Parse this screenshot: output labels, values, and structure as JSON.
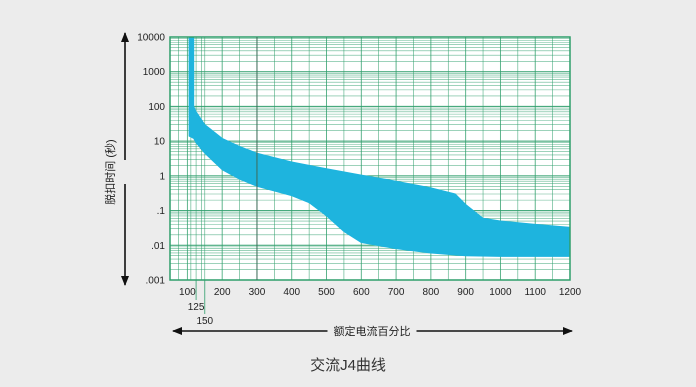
{
  "caption": "交流J4曲线",
  "chart_data": {
    "type": "area",
    "title": "",
    "xlabel": "额定电流百分比",
    "ylabel": "脱扣时间 (秒)",
    "x_scale": "linear",
    "y_scale": "log",
    "xlim": [
      50,
      1200
    ],
    "ylim": [
      0.001,
      10000
    ],
    "x_ticks": [
      100,
      200,
      300,
      400,
      500,
      600,
      700,
      800,
      900,
      1000,
      1100,
      1200
    ],
    "x_extra_ticks": [
      125,
      150
    ],
    "y_ticks": [
      10000,
      1000,
      100,
      10,
      1,
      0.1,
      0.01,
      0.001
    ],
    "y_tick_labels": [
      "10000",
      "1000",
      "100",
      "10",
      "1",
      ".1",
      ".01",
      ".001"
    ],
    "grid": true,
    "colors": {
      "band": "#1eb4de",
      "grid": "#2e9e6b",
      "axis": "#111111"
    },
    "series": [
      {
        "name": "",
        "upper": [
          [
            105,
            10000
          ],
          [
            118,
            10000
          ],
          [
            118,
            100
          ],
          [
            125,
            70
          ],
          [
            150,
            30
          ],
          [
            200,
            12
          ],
          [
            250,
            7
          ],
          [
            300,
            4.5
          ],
          [
            400,
            2.5
          ],
          [
            500,
            1.6
          ],
          [
            600,
            1.05
          ],
          [
            700,
            0.7
          ],
          [
            800,
            0.45
          ],
          [
            870,
            0.3
          ],
          [
            900,
            0.15
          ],
          [
            950,
            0.06
          ],
          [
            1000,
            0.05
          ],
          [
            1100,
            0.04
          ],
          [
            1200,
            0.033
          ]
        ],
        "lower": [
          [
            105,
            14
          ],
          [
            118,
            12
          ],
          [
            125,
            9
          ],
          [
            150,
            4.5
          ],
          [
            200,
            1.5
          ],
          [
            250,
            0.8
          ],
          [
            300,
            0.5
          ],
          [
            400,
            0.27
          ],
          [
            450,
            0.17
          ],
          [
            500,
            0.07
          ],
          [
            550,
            0.025
          ],
          [
            600,
            0.012
          ],
          [
            700,
            0.008
          ],
          [
            800,
            0.006
          ],
          [
            900,
            0.005
          ],
          [
            1000,
            0.0048
          ],
          [
            1100,
            0.0048
          ],
          [
            1200,
            0.0048
          ]
        ]
      }
    ]
  }
}
